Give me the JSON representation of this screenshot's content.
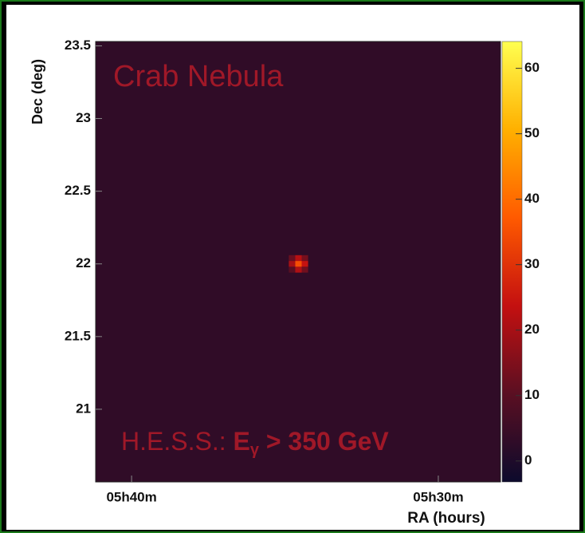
{
  "chart_data": {
    "type": "heatmap",
    "annotations": [
      "Crab Nebula"
    ],
    "energy_label": {
      "prefix": "H.E.S.S.: ",
      "symbol": "E",
      "subscript": "γ",
      "rest": " > 350 GeV"
    },
    "xlabel": "RA (hours)",
    "ylabel": "Dec (deg)",
    "xlim": [
      5.6862,
      5.4662
    ],
    "ylim": [
      20.5,
      23.53
    ],
    "xticks": [
      {
        "value": 5.666667,
        "label": "05h40m"
      },
      {
        "value": 5.5,
        "label": "05h30m"
      }
    ],
    "yticks": [
      21,
      21.5,
      22,
      22.5,
      23,
      23.5
    ],
    "zlim": [
      -3.2,
      64.1
    ],
    "zticks": [
      0,
      10,
      20,
      30,
      40,
      50,
      60
    ],
    "colors": [
      "#0c0a2c",
      "#5a0f22",
      "#c41010",
      "#ff5a00",
      "#ffb000",
      "#ffff50"
    ],
    "background": 3,
    "x": [
      5.5795,
      5.576,
      5.5725
    ],
    "y": [
      22.04,
      22.0,
      21.96
    ],
    "z": [
      [
        12,
        22,
        14
      ],
      [
        20,
        35,
        24
      ],
      [
        10,
        21,
        13
      ]
    ],
    "annotation_color": "#a01828"
  }
}
